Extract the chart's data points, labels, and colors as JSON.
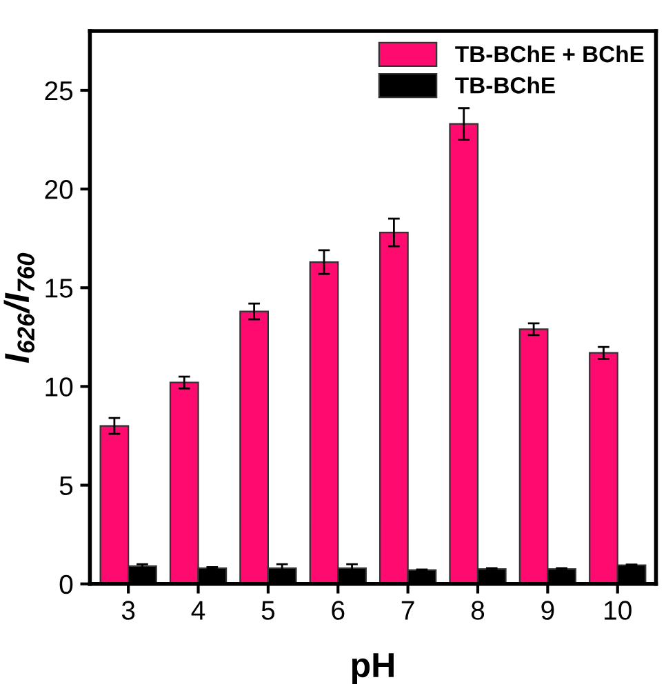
{
  "chart_data": {
    "type": "bar",
    "xlabel": "pH",
    "ylabel": "I$_{626}$/I$_{760}$",
    "categories": [
      "3",
      "4",
      "5",
      "6",
      "7",
      "8",
      "9",
      "10"
    ],
    "series": [
      {
        "name": "TB-BChE + BChE",
        "color": "#ff0a6e",
        "values": [
          8.0,
          10.2,
          13.8,
          16.3,
          17.8,
          23.3,
          12.9,
          11.7
        ],
        "errors": [
          0.4,
          0.3,
          0.4,
          0.6,
          0.7,
          0.8,
          0.3,
          0.3
        ]
      },
      {
        "name": "TB-BChE",
        "color": "#000000",
        "values": [
          0.9,
          0.8,
          0.8,
          0.8,
          0.7,
          0.75,
          0.75,
          0.95
        ],
        "errors": [
          0.1,
          0.05,
          0.2,
          0.2,
          0.03,
          0.05,
          0.05,
          0.03
        ]
      }
    ],
    "ylim": [
      0,
      28
    ],
    "yticks": [
      0,
      5,
      10,
      15,
      20,
      25
    ],
    "grid": false,
    "legend": "top right"
  }
}
